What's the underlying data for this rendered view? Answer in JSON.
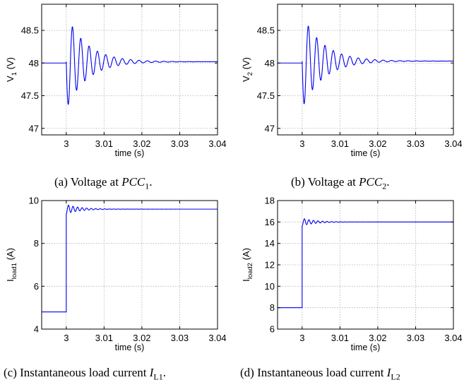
{
  "colors": {
    "series": "#0000ee",
    "grid": "#b0b0b0",
    "axis": "#000000"
  },
  "chart_data": [
    {
      "type": "line",
      "ylabel_main": "V",
      "ylabel_sub": "1",
      "ylabel_unit": " (V)",
      "xlabel": "time (s)",
      "xlim": [
        2.9935,
        3.04
      ],
      "ylim": [
        46.9,
        48.9
      ],
      "xticks": [
        "3",
        "3.01",
        "3.02",
        "3.03",
        "3.04"
      ],
      "xtick_values": [
        3,
        3.01,
        3.02,
        3.03,
        3.04
      ],
      "yticks": [
        "47",
        "47.5",
        "48",
        "48.5"
      ],
      "ytick_values": [
        47,
        47.5,
        48,
        48.5
      ],
      "grid": true,
      "series": [
        {
          "signal": "damped-oscillation",
          "x_step": 3.0,
          "before": 48.0,
          "after": 48.02,
          "amplitude": 0.72,
          "period": 0.0022,
          "decay": 0.0055,
          "x_end": 3.04
        }
      ],
      "caption_prefix": "(a) Voltage at ",
      "caption_var": "PCC",
      "caption_sub": "1",
      "caption_suffix": "."
    },
    {
      "type": "line",
      "ylabel_main": "V",
      "ylabel_sub": "2",
      "ylabel_unit": " (V)",
      "xlabel": "time (s)",
      "xlim": [
        2.9935,
        3.04
      ],
      "ylim": [
        46.9,
        48.9
      ],
      "xticks": [
        "3",
        "3.01",
        "3.02",
        "3.03",
        "3.04"
      ],
      "xtick_values": [
        3,
        3.01,
        3.02,
        3.03,
        3.04
      ],
      "yticks": [
        "47",
        "47.5",
        "48",
        "48.5"
      ],
      "ytick_values": [
        47,
        47.5,
        48,
        48.5
      ],
      "grid": true,
      "series": [
        {
          "signal": "damped-oscillation",
          "x_step": 3.0,
          "before": 48.0,
          "after": 48.03,
          "amplitude": 0.72,
          "period": 0.0022,
          "decay": 0.0055,
          "x_end": 3.04
        }
      ],
      "caption_prefix": "(b) Voltage at ",
      "caption_var": "PCC",
      "caption_sub": "2",
      "caption_suffix": "."
    },
    {
      "type": "line",
      "ylabel_main": "I",
      "ylabel_sub": "load1",
      "ylabel_unit": " (A)",
      "xlabel": "time (s)",
      "xlim": [
        2.9935,
        3.04
      ],
      "ylim": [
        4,
        10
      ],
      "xticks": [
        "3",
        "3.01",
        "3.02",
        "3.03",
        "3.04"
      ],
      "xtick_values": [
        3,
        3.01,
        3.02,
        3.03,
        3.04
      ],
      "yticks": [
        "4",
        "6",
        "8",
        "10"
      ],
      "ytick_values": [
        4,
        6,
        8,
        10
      ],
      "grid": true,
      "series": [
        {
          "signal": "step-ringing",
          "x_step": 3.0,
          "before": 4.8,
          "after": 9.6,
          "amplitude": 0.22,
          "period": 0.0012,
          "decay": 0.0035,
          "x_end": 3.04
        }
      ],
      "caption_prefix": "(c) Instantaneous load current ",
      "caption_var": "I",
      "caption_sub": "L1",
      "caption_suffix": "."
    },
    {
      "type": "line",
      "ylabel_main": "I",
      "ylabel_sub": "load2",
      "ylabel_unit": " (A)",
      "xlabel": "time (s)",
      "xlim": [
        2.9935,
        3.04
      ],
      "ylim": [
        6,
        18
      ],
      "xticks": [
        "3",
        "3.01",
        "3.02",
        "3.03",
        "3.04"
      ],
      "xtick_values": [
        3,
        3.01,
        3.02,
        3.03,
        3.04
      ],
      "yticks": [
        "6",
        "8",
        "10",
        "12",
        "14",
        "16",
        "18"
      ],
      "ytick_values": [
        6,
        8,
        10,
        12,
        14,
        16,
        18
      ],
      "grid": true,
      "series": [
        {
          "signal": "step-ringing",
          "x_step": 3.0,
          "before": 8.0,
          "after": 16.0,
          "amplitude": 0.35,
          "period": 0.0012,
          "decay": 0.0035,
          "x_end": 3.04
        }
      ],
      "caption_prefix": "(d) Instantaneous load current ",
      "caption_var": "I",
      "caption_sub": "L2",
      "caption_suffix": ""
    }
  ]
}
